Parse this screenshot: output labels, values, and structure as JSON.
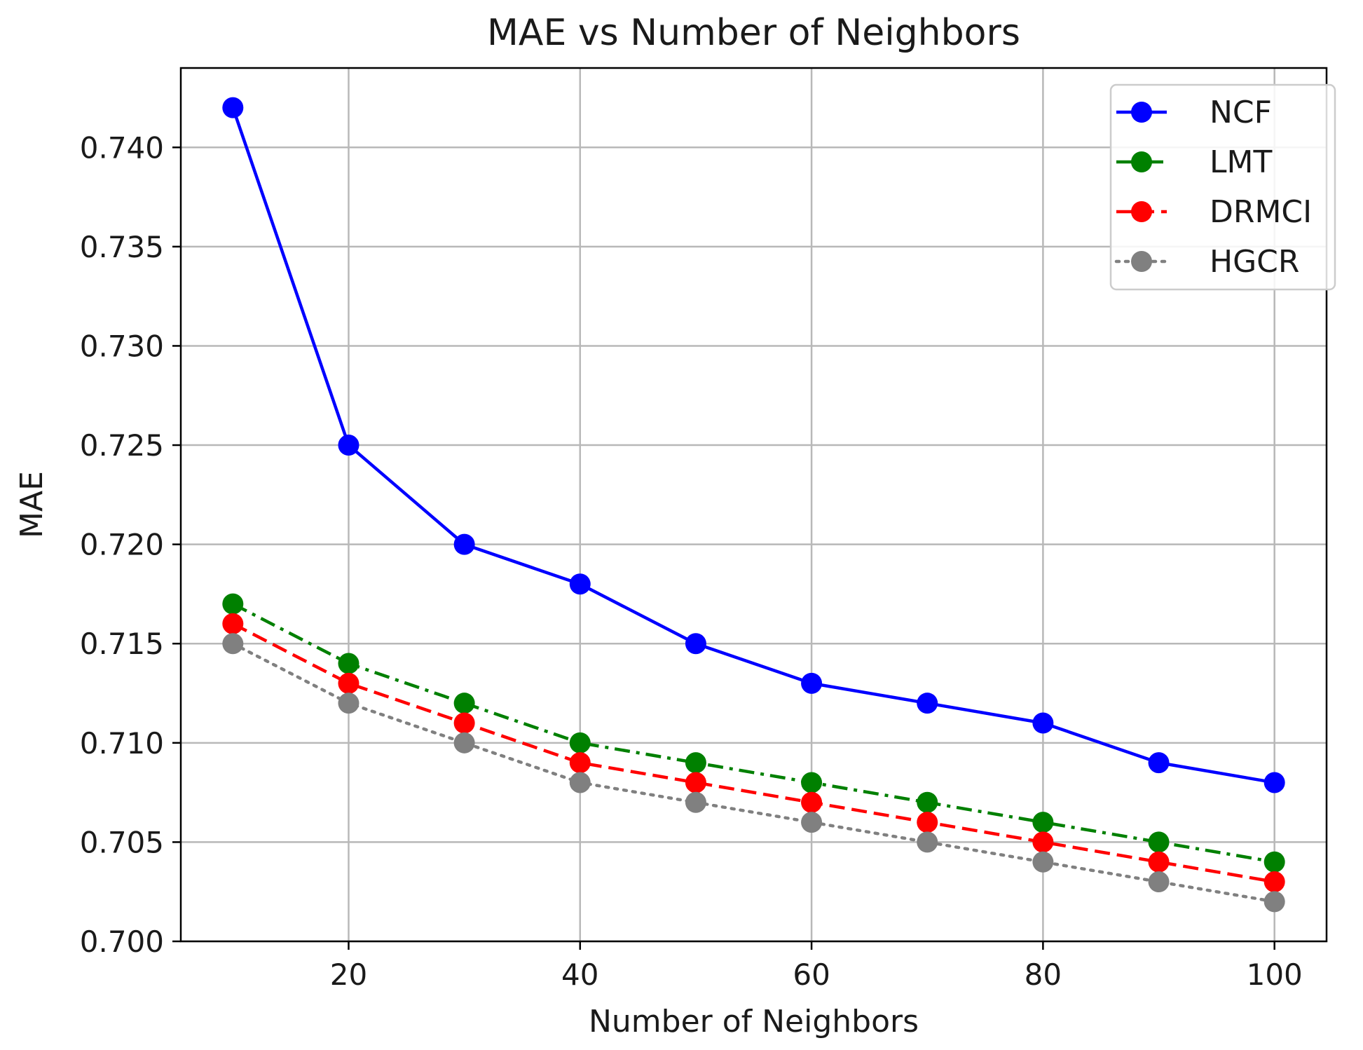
{
  "chart_data": {
    "type": "line",
    "title": "MAE vs Number of Neighbors",
    "xlabel": "Number of Neighbors",
    "ylabel": "MAE",
    "x": [
      10,
      20,
      30,
      40,
      50,
      60,
      70,
      80,
      90,
      100
    ],
    "xlim": [
      5.5,
      104.5
    ],
    "ylim": [
      0.7,
      0.744
    ],
    "x_ticks": [
      20,
      40,
      60,
      80,
      100
    ],
    "y_ticks": [
      0.7,
      0.705,
      0.71,
      0.715,
      0.72,
      0.725,
      0.73,
      0.735,
      0.74
    ],
    "x_tick_labels": [
      "20",
      "40",
      "60",
      "80",
      "100"
    ],
    "y_tick_labels": [
      "0.700",
      "0.705",
      "0.710",
      "0.715",
      "0.720",
      "0.725",
      "0.730",
      "0.735",
      "0.740"
    ],
    "grid": true,
    "legend_position": "top-right",
    "series": [
      {
        "name": "NCF",
        "color": "#0000ff",
        "style": "solid",
        "values": [
          0.742,
          0.725,
          0.72,
          0.718,
          0.715,
          0.713,
          0.712,
          0.711,
          0.709,
          0.708
        ]
      },
      {
        "name": "LMT",
        "color": "#008000",
        "style": "dashdot",
        "values": [
          0.717,
          0.714,
          0.712,
          0.71,
          0.709,
          0.708,
          0.707,
          0.706,
          0.705,
          0.704
        ]
      },
      {
        "name": "DRMCI",
        "color": "#ff0000",
        "style": "dashed",
        "values": [
          0.716,
          0.713,
          0.711,
          0.709,
          0.708,
          0.707,
          0.706,
          0.705,
          0.704,
          0.703
        ]
      },
      {
        "name": "HGCR",
        "color": "#808080",
        "style": "dotted",
        "values": [
          0.715,
          0.712,
          0.71,
          0.708,
          0.707,
          0.706,
          0.705,
          0.704,
          0.703,
          0.702
        ]
      }
    ]
  }
}
